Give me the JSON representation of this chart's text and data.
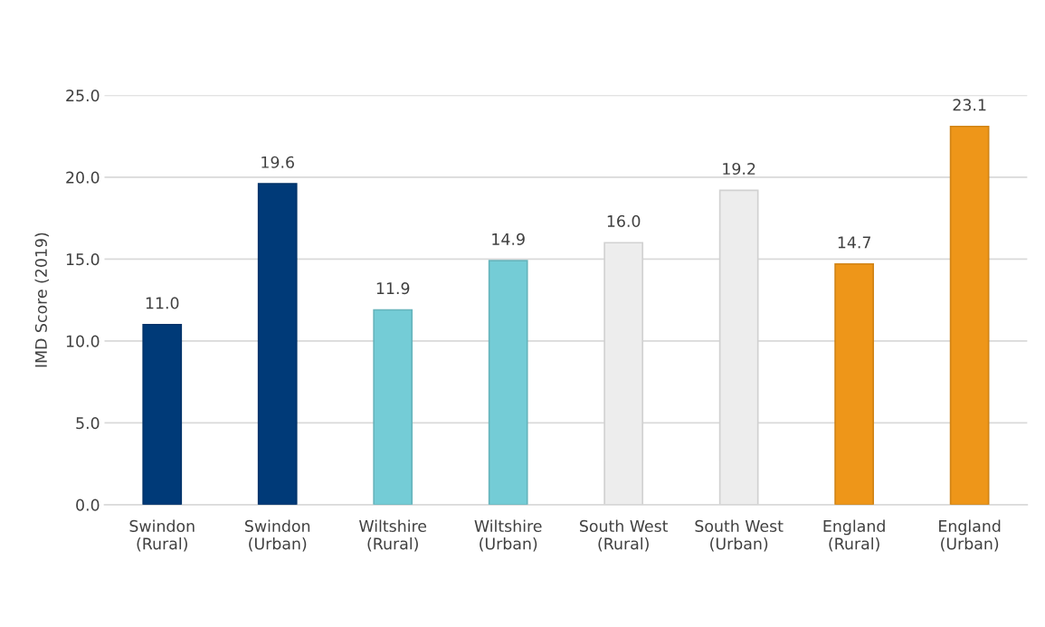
{
  "chart_data": {
    "type": "bar",
    "ylabel": "IMD Score (2019)",
    "categories": [
      "Swindon\n(Rural)",
      "Swindon\n(Urban)",
      "Wiltshire\n(Rural)",
      "Wiltshire\n(Urban)",
      "South West\n(Rural)",
      "South West\n(Urban)",
      "England\n(Rural)",
      "England\n(Urban)"
    ],
    "values": [
      11.0,
      19.6,
      11.9,
      14.9,
      16.0,
      19.2,
      14.7,
      23.1
    ],
    "value_labels": [
      "11.0",
      "19.6",
      "11.9",
      "14.9",
      "16.0",
      "19.2",
      "14.7",
      "23.1"
    ],
    "colors": [
      "#003a78",
      "#003a78",
      "#74ccd6",
      "#74ccd6",
      "#ededed",
      "#ededed",
      "#ee9619",
      "#ee9619"
    ],
    "ylim": [
      0,
      25
    ],
    "yticks": [
      {
        "value": 0,
        "label": "0.0"
      },
      {
        "value": 5,
        "label": "5.0"
      },
      {
        "value": 10,
        "label": "10.0"
      },
      {
        "value": 15,
        "label": "15.0"
      },
      {
        "value": 20,
        "label": "20.0"
      },
      {
        "value": 25,
        "label": "25.0"
      }
    ],
    "grid": "y",
    "legend": false
  }
}
